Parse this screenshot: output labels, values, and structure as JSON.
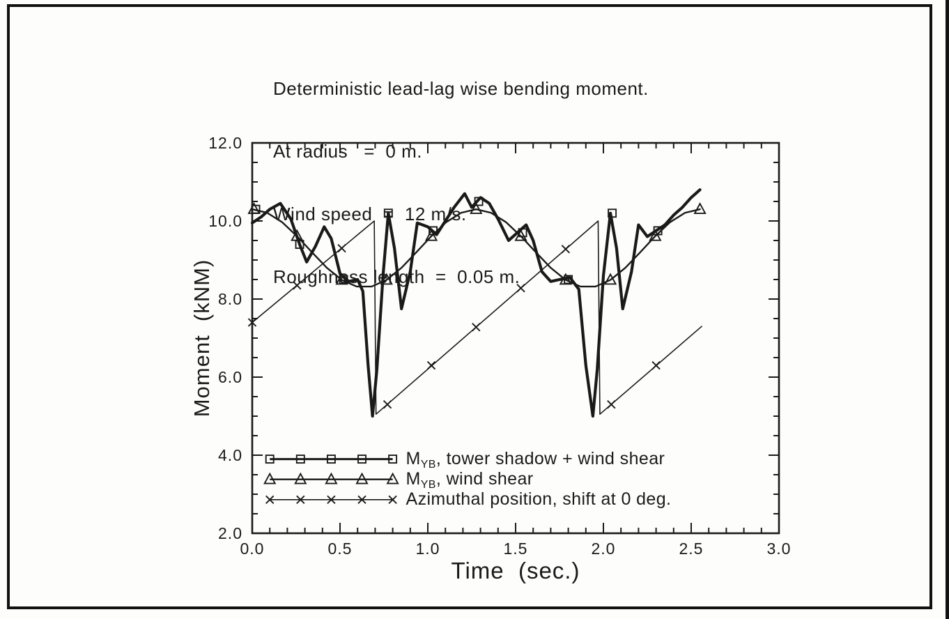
{
  "chart_data": {
    "type": "line",
    "title": "Deterministic lead-lag wise bending moment.",
    "subtitle_lines": [
      "At radius   =  0 m.",
      "Wind speed  =  12 m/s.",
      "Roughness length  =  0.05 m."
    ],
    "xlabel": "Time  (sec.)",
    "ylabel": "Moment  (kNM)",
    "xlim": [
      0.0,
      3.0
    ],
    "ylim": [
      2.0,
      12.0
    ],
    "x_major_ticks": [
      0.0,
      0.5,
      1.0,
      1.5,
      2.0,
      2.5,
      3.0
    ],
    "x_minor_step": 0.1,
    "y_major_ticks": [
      2.0,
      4.0,
      6.0,
      8.0,
      10.0,
      12.0
    ],
    "y_minor_step": 0.5,
    "grid": false,
    "line_color": "#1a1a1a",
    "legend_position": "lower-left-inside",
    "legend": {
      "rows_y": [
        3.9,
        3.38,
        2.86
      ],
      "span": [
        0.1,
        0.8
      ],
      "label_x": 0.875,
      "marker_count": 5
    },
    "series": [
      {
        "id": "myb-tower-shadow-wind-shear",
        "marker": "square",
        "legend": {
          "prefix": "M",
          "sub": "YB",
          "text": ", tower shadow + wind shear"
        },
        "points": [
          [
            0,
            9.95
          ],
          [
            0.05,
            10.1
          ],
          [
            0.1,
            10.3
          ],
          [
            0.16,
            10.45
          ],
          [
            0.22,
            10.05
          ],
          [
            0.27,
            9.4
          ],
          [
            0.31,
            8.95
          ],
          [
            0.36,
            9.35
          ],
          [
            0.41,
            9.85
          ],
          [
            0.45,
            9.55
          ],
          [
            0.5,
            8.65
          ],
          [
            0.55,
            8.45
          ],
          [
            0.6,
            8.5
          ],
          [
            0.63,
            8.2
          ],
          [
            0.66,
            6.3
          ],
          [
            0.685,
            5.0
          ],
          [
            0.71,
            6.2
          ],
          [
            0.745,
            8.6
          ],
          [
            0.775,
            10.2
          ],
          [
            0.81,
            9.3
          ],
          [
            0.85,
            7.75
          ],
          [
            0.9,
            8.7
          ],
          [
            0.94,
            9.95
          ],
          [
            1.0,
            9.85
          ],
          [
            1.05,
            9.65
          ],
          [
            1.1,
            10.0
          ],
          [
            1.15,
            10.35
          ],
          [
            1.21,
            10.7
          ],
          [
            1.25,
            10.35
          ],
          [
            1.3,
            10.6
          ],
          [
            1.35,
            10.45
          ],
          [
            1.4,
            10.05
          ],
          [
            1.46,
            9.5
          ],
          [
            1.51,
            9.7
          ],
          [
            1.56,
            9.9
          ],
          [
            1.6,
            9.5
          ],
          [
            1.65,
            8.7
          ],
          [
            1.7,
            8.45
          ],
          [
            1.75,
            8.5
          ],
          [
            1.81,
            8.55
          ],
          [
            1.86,
            8.25
          ],
          [
            1.9,
            6.3
          ],
          [
            1.94,
            5.0
          ],
          [
            1.965,
            6.2
          ],
          [
            2.0,
            8.6
          ],
          [
            2.04,
            10.2
          ],
          [
            2.075,
            9.3
          ],
          [
            2.11,
            7.75
          ],
          [
            2.16,
            8.7
          ],
          [
            2.2,
            9.9
          ],
          [
            2.25,
            9.6
          ],
          [
            2.3,
            9.75
          ],
          [
            2.35,
            9.9
          ],
          [
            2.4,
            10.15
          ],
          [
            2.45,
            10.35
          ],
          [
            2.5,
            10.6
          ],
          [
            2.55,
            10.8
          ]
        ],
        "marker_points": [
          [
            0.02,
            10.3
          ],
          [
            0.27,
            9.4
          ],
          [
            0.52,
            8.5
          ],
          [
            0.775,
            10.2
          ],
          [
            1.03,
            9.75
          ],
          [
            1.29,
            10.5
          ],
          [
            1.54,
            9.7
          ],
          [
            1.8,
            8.5
          ],
          [
            2.05,
            10.2
          ],
          [
            2.31,
            9.75
          ]
        ]
      },
      {
        "id": "myb-wind-shear",
        "marker": "triangle",
        "legend": {
          "prefix": "M",
          "sub": "YB",
          "text": ", wind shear"
        },
        "points": [
          [
            0,
            10.3
          ],
          [
            0.085,
            10.21
          ],
          [
            0.17,
            9.97
          ],
          [
            0.255,
            9.61
          ],
          [
            0.34,
            9.2
          ],
          [
            0.425,
            8.8
          ],
          [
            0.51,
            8.49
          ],
          [
            0.595,
            8.32
          ],
          [
            0.68,
            8.32
          ],
          [
            0.765,
            8.49
          ],
          [
            0.85,
            8.8
          ],
          [
            0.935,
            9.2
          ],
          [
            1.02,
            9.61
          ],
          [
            1.105,
            9.97
          ],
          [
            1.19,
            10.21
          ],
          [
            1.275,
            10.3
          ],
          [
            1.36,
            10.21
          ],
          [
            1.445,
            9.97
          ],
          [
            1.53,
            9.61
          ],
          [
            1.615,
            9.2
          ],
          [
            1.7,
            8.8
          ],
          [
            1.785,
            8.49
          ],
          [
            1.87,
            8.32
          ],
          [
            1.955,
            8.32
          ],
          [
            2.04,
            8.49
          ],
          [
            2.125,
            8.8
          ],
          [
            2.21,
            9.2
          ],
          [
            2.295,
            9.61
          ],
          [
            2.38,
            9.97
          ],
          [
            2.465,
            10.21
          ],
          [
            2.55,
            10.3
          ]
        ],
        "marker_points": [
          [
            0.01,
            10.3
          ],
          [
            0.255,
            9.61
          ],
          [
            0.51,
            8.49
          ],
          [
            0.765,
            8.49
          ],
          [
            1.02,
            9.61
          ],
          [
            1.275,
            10.3
          ],
          [
            1.53,
            9.61
          ],
          [
            1.785,
            8.49
          ],
          [
            2.04,
            8.49
          ],
          [
            2.295,
            9.61
          ],
          [
            2.55,
            10.3
          ]
        ]
      },
      {
        "id": "azimuthal-position",
        "marker": "x",
        "legend": {
          "prefix": "",
          "sub": "",
          "text": "Azimuthal position, shift at 0 deg."
        },
        "points": [
          [
            0,
            7.4
          ],
          [
            0.695,
            10.0
          ],
          [
            0.705,
            5.05
          ],
          [
            1.97,
            10.0
          ],
          [
            1.98,
            5.05
          ],
          [
            2.56,
            7.3
          ]
        ],
        "marker_points": [
          [
            0,
            7.4
          ],
          [
            0.255,
            8.35
          ],
          [
            0.51,
            9.3
          ],
          [
            0.77,
            5.3
          ],
          [
            1.02,
            6.3
          ],
          [
            1.275,
            7.28
          ],
          [
            1.53,
            8.28
          ],
          [
            1.785,
            9.28
          ],
          [
            2.045,
            5.3
          ],
          [
            2.3,
            6.3
          ]
        ]
      }
    ]
  }
}
